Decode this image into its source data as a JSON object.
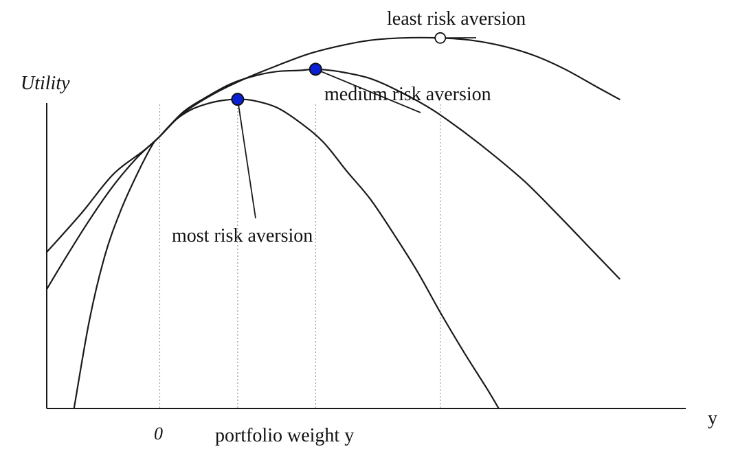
{
  "chart_data": {
    "type": "line",
    "title": "",
    "xlabel": "portfolio weight y",
    "xaxis_end_label": "y",
    "ylabel": "Utility",
    "zero_label": "0",
    "xlim": [
      -1.45,
      6.75
    ],
    "ylim": [
      -1.75,
      1.6
    ],
    "colors": {
      "curve": "#1a1a1a",
      "axis": "#1a1a1a",
      "guide": "#9a9a9a",
      "marker_fill": "#0a1fd6",
      "marker_stroke": "#111111"
    },
    "series": [
      {
        "name": "most risk aversion",
        "optimum": {
          "x": 1.0,
          "y": 0.92
        },
        "x": [
          -1.1,
          -0.9,
          -0.7,
          -0.5,
          -0.3,
          -0.1,
          0.0,
          0.2,
          0.4,
          0.6,
          0.8,
          1.0,
          1.2,
          1.5,
          1.8,
          2.1,
          2.4,
          2.7,
          3.0,
          3.3,
          3.6,
          3.9,
          4.2,
          4.35
        ],
        "values": [
          -1.75,
          -0.98,
          -0.42,
          -0.04,
          0.26,
          0.52,
          0.6,
          0.74,
          0.83,
          0.88,
          0.91,
          0.92,
          0.91,
          0.85,
          0.72,
          0.55,
          0.3,
          0.06,
          -0.24,
          -0.56,
          -0.92,
          -1.26,
          -1.58,
          -1.75
        ]
      },
      {
        "name": "medium risk aversion",
        "optimum": {
          "x": 2.0,
          "y": 1.18
        },
        "x": [
          -1.45,
          -1.2,
          -0.9,
          -0.6,
          -0.3,
          0.0,
          0.3,
          0.6,
          0.9,
          1.2,
          1.5,
          1.8,
          2.0,
          2.3,
          2.7,
          3.1,
          3.5,
          3.9,
          4.3,
          4.7,
          5.1,
          5.5,
          5.9
        ],
        "values": [
          -0.72,
          -0.44,
          -0.12,
          0.17,
          0.41,
          0.6,
          0.81,
          0.94,
          1.05,
          1.12,
          1.16,
          1.17,
          1.18,
          1.16,
          1.1,
          0.98,
          0.83,
          0.64,
          0.43,
          0.2,
          -0.07,
          -0.35,
          -0.63
        ]
      },
      {
        "name": "least risk aversion",
        "optimum": {
          "x": 3.6,
          "y": 1.45
        },
        "x": [
          -1.45,
          -1.0,
          -0.6,
          -0.2,
          0.0,
          0.3,
          0.7,
          1.1,
          1.5,
          1.9,
          2.3,
          2.7,
          3.1,
          3.6,
          4.0,
          4.4,
          4.8,
          5.2,
          5.6,
          5.9
        ],
        "values": [
          -0.4,
          -0.06,
          0.27,
          0.48,
          0.6,
          0.8,
          0.97,
          1.1,
          1.21,
          1.31,
          1.38,
          1.43,
          1.45,
          1.45,
          1.43,
          1.38,
          1.3,
          1.18,
          1.03,
          0.92
        ]
      }
    ],
    "markers": [
      {
        "series": "most risk aversion",
        "style": "filled"
      },
      {
        "series": "medium risk aversion",
        "style": "filled"
      },
      {
        "series": "least risk aversion",
        "style": "open"
      }
    ],
    "annotations": [
      {
        "text": "least risk aversion",
        "target": "least risk aversion"
      },
      {
        "text": "medium risk aversion",
        "target": "medium risk aversion"
      },
      {
        "text": "most risk aversion",
        "target": "most risk aversion"
      }
    ],
    "guides": [
      0.0,
      1.0,
      2.0,
      3.6
    ]
  }
}
